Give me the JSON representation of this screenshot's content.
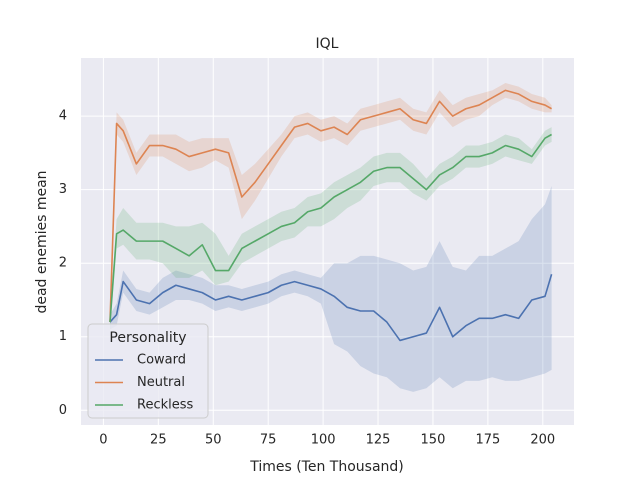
{
  "chart_data": {
    "type": "line",
    "title": "IQL",
    "xlabel": "Times (Ten Thousand)",
    "ylabel": "dead enemies mean",
    "x": [
      3,
      6,
      9,
      15,
      21,
      27,
      33,
      39,
      45,
      51,
      57,
      63,
      69,
      75,
      81,
      87,
      93,
      99,
      105,
      111,
      117,
      123,
      129,
      135,
      141,
      147,
      153,
      159,
      165,
      171,
      177,
      183,
      189,
      195,
      201,
      204
    ],
    "series": [
      {
        "name": "Coward",
        "color": "#4c72b0",
        "values": [
          1.2,
          1.3,
          1.75,
          1.5,
          1.45,
          1.6,
          1.7,
          1.65,
          1.6,
          1.5,
          1.55,
          1.5,
          1.55,
          1.6,
          1.7,
          1.75,
          1.7,
          1.65,
          1.55,
          1.4,
          1.35,
          1.35,
          1.2,
          0.95,
          1.0,
          1.05,
          1.4,
          1.0,
          1.15,
          1.25,
          1.25,
          1.3,
          1.25,
          1.5,
          1.55,
          1.85
        ],
        "lower": [
          1.1,
          1.15,
          1.6,
          1.35,
          1.3,
          1.4,
          1.5,
          1.5,
          1.45,
          1.35,
          1.4,
          1.35,
          1.4,
          1.45,
          1.55,
          1.6,
          1.55,
          1.45,
          0.9,
          0.8,
          0.6,
          0.5,
          0.45,
          0.3,
          0.25,
          0.3,
          0.45,
          0.3,
          0.4,
          0.4,
          0.45,
          0.4,
          0.4,
          0.45,
          0.5,
          0.55
        ],
        "upper": [
          1.3,
          1.45,
          1.9,
          1.65,
          1.6,
          1.8,
          1.9,
          1.85,
          1.8,
          1.7,
          1.7,
          1.65,
          1.7,
          1.75,
          1.85,
          1.9,
          1.85,
          1.8,
          2.0,
          2.0,
          2.1,
          2.1,
          2.05,
          2.0,
          1.9,
          1.95,
          2.3,
          1.95,
          1.9,
          2.1,
          2.1,
          2.2,
          2.3,
          2.6,
          2.8,
          3.05
        ]
      },
      {
        "name": "Neutral",
        "color": "#dd8452",
        "values": [
          1.2,
          3.9,
          3.8,
          3.35,
          3.6,
          3.6,
          3.55,
          3.45,
          3.5,
          3.55,
          3.5,
          2.9,
          3.1,
          3.35,
          3.6,
          3.85,
          3.9,
          3.8,
          3.85,
          3.75,
          3.95,
          4.0,
          4.05,
          4.1,
          3.95,
          3.9,
          4.2,
          4.0,
          4.1,
          4.15,
          4.25,
          4.35,
          4.3,
          4.2,
          4.15,
          4.1
        ],
        "lower": [
          1.1,
          3.75,
          3.65,
          3.2,
          3.45,
          3.45,
          3.35,
          3.25,
          3.3,
          3.4,
          3.3,
          2.6,
          2.85,
          3.15,
          3.45,
          3.7,
          3.75,
          3.65,
          3.7,
          3.6,
          3.8,
          3.85,
          3.9,
          3.95,
          3.8,
          3.75,
          4.05,
          3.85,
          3.95,
          4.0,
          4.15,
          4.25,
          4.2,
          4.1,
          4.05,
          4.05
        ],
        "upper": [
          1.3,
          4.05,
          3.95,
          3.5,
          3.75,
          3.75,
          3.75,
          3.65,
          3.7,
          3.7,
          3.7,
          3.2,
          3.35,
          3.55,
          3.75,
          4.0,
          4.05,
          3.95,
          4.0,
          3.9,
          4.1,
          4.15,
          4.2,
          4.25,
          4.1,
          4.05,
          4.35,
          4.15,
          4.25,
          4.3,
          4.35,
          4.45,
          4.4,
          4.3,
          4.25,
          4.15
        ]
      },
      {
        "name": "Reckless",
        "color": "#55a868",
        "values": [
          1.2,
          2.4,
          2.45,
          2.3,
          2.3,
          2.3,
          2.2,
          2.1,
          2.25,
          1.9,
          1.9,
          2.2,
          2.3,
          2.4,
          2.5,
          2.55,
          2.7,
          2.75,
          2.9,
          3.0,
          3.1,
          3.25,
          3.3,
          3.3,
          3.15,
          3.0,
          3.2,
          3.3,
          3.45,
          3.45,
          3.5,
          3.6,
          3.55,
          3.45,
          3.7,
          3.75
        ],
        "lower": [
          1.1,
          2.2,
          2.25,
          2.05,
          2.05,
          2.0,
          1.8,
          1.8,
          1.9,
          1.7,
          1.75,
          2.0,
          2.1,
          2.2,
          2.3,
          2.35,
          2.5,
          2.5,
          2.6,
          2.75,
          2.85,
          3.05,
          3.1,
          3.1,
          2.95,
          2.85,
          3.05,
          3.15,
          3.3,
          3.3,
          3.35,
          3.45,
          3.4,
          3.35,
          3.6,
          3.65
        ],
        "upper": [
          1.3,
          2.6,
          2.75,
          2.55,
          2.55,
          2.55,
          2.5,
          2.5,
          2.55,
          2.4,
          2.1,
          2.4,
          2.5,
          2.6,
          2.7,
          2.75,
          2.9,
          2.95,
          3.1,
          3.2,
          3.3,
          3.45,
          3.5,
          3.5,
          3.35,
          3.15,
          3.35,
          3.45,
          3.6,
          3.6,
          3.65,
          3.75,
          3.7,
          3.55,
          3.8,
          3.85
        ]
      }
    ],
    "legend_title": "Personality",
    "legend_loc": "lower left",
    "xlim": [
      -10.2,
      214.2
    ],
    "xticks": [
      0,
      25,
      50,
      75,
      100,
      125,
      150,
      175,
      200
    ],
    "ylim": [
      -0.2,
      4.79
    ],
    "yticks": [
      0,
      1,
      2,
      3,
      4
    ],
    "grid": true
  }
}
